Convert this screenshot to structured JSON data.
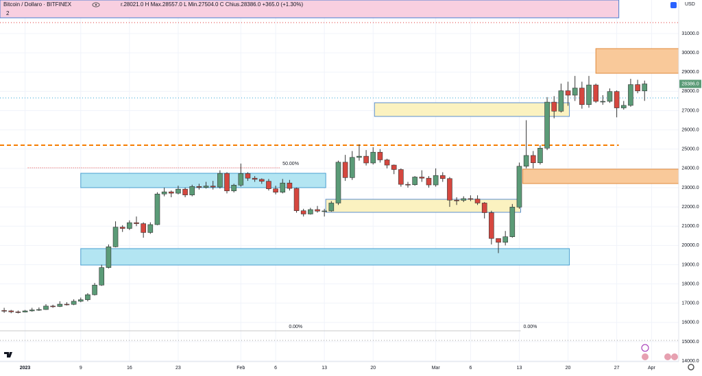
{
  "header": {
    "symbol": "Bitcoin / Dollaro · BITFINEX",
    "ohlc": "r.28021.0  H  Max.28557.0  L  Min.27504.0  C  Chius.28386.0  +365.0 (+1.30%)",
    "indicators": "2",
    "currency": "USD"
  },
  "chart_data": {
    "type": "candlestick",
    "up_color": "#5b9b77",
    "down_color": "#d5473f",
    "grid": true,
    "ylim": [
      13966,
      32742
    ],
    "xlim": [
      -0.6,
      96.9
    ],
    "yticks": [
      {
        "value": 14000,
        "label": "14000.0"
      },
      {
        "value": 15000,
        "label": "15000.0"
      },
      {
        "value": 16000,
        "label": "16000.0"
      },
      {
        "value": 17000,
        "label": "17000.0"
      },
      {
        "value": 18000,
        "label": "18000.0"
      },
      {
        "value": 19000,
        "label": "19000.0"
      },
      {
        "value": 20000,
        "label": "20000.0"
      },
      {
        "value": 21000,
        "label": "21000.0"
      },
      {
        "value": 22000,
        "label": "22000.0"
      },
      {
        "value": 23000,
        "label": "23000.0"
      },
      {
        "value": 24000,
        "label": "24000.0"
      },
      {
        "value": 25000,
        "label": "25000.0"
      },
      {
        "value": 26000,
        "label": "26000.0"
      },
      {
        "value": 27000,
        "label": "27000.0"
      },
      {
        "value": 28000,
        "label": "28000.0"
      },
      {
        "value": 29000,
        "label": "29000.0"
      },
      {
        "value": 30000,
        "label": "30000.0"
      },
      {
        "value": 31000,
        "label": "31000.0"
      }
    ],
    "xticks": [
      {
        "value": 3,
        "label": "2023"
      },
      {
        "value": 11,
        "label": "9"
      },
      {
        "value": 18,
        "label": "16"
      },
      {
        "value": 25,
        "label": "23"
      },
      {
        "value": 34,
        "label": "Feb"
      },
      {
        "value": 39,
        "label": "6"
      },
      {
        "value": 46,
        "label": "13"
      },
      {
        "value": 53,
        "label": "20"
      },
      {
        "value": 62,
        "label": "Mar"
      },
      {
        "value": 67,
        "label": "6"
      },
      {
        "value": 74,
        "label": "13"
      },
      {
        "value": 81,
        "label": "20"
      },
      {
        "value": 88,
        "label": "27"
      },
      {
        "value": 93,
        "label": "Apr"
      }
    ],
    "open": [
      16620,
      16600,
      16550,
      16540,
      16600,
      16650,
      16670,
      16850,
      16830,
      16950,
      16940,
      17100,
      17180,
      17440,
      17940,
      18850,
      19930,
      20950,
      20880,
      21180,
      21130,
      20670,
      21080,
      22670,
      22780,
      22710,
      22920,
      22620,
      23060,
      23010,
      23080,
      23030,
      23740,
      22830,
      23130,
      23730,
      23490,
      23430,
      23330,
      22940,
      22760,
      23240,
      22960,
      21800,
      21630,
      21860,
      21780,
      21790,
      22200,
      24320,
      23520,
      24570,
      24630,
      24280,
      24840,
      24440,
      24170,
      23940,
      23170,
      23150,
      23550,
      23490,
      23140,
      23630,
      23470,
      22350,
      22340,
      22430,
      22410,
      22200,
      21700,
      20360,
      20160,
      20450,
      21990,
      24110,
      24670,
      24290,
      25050,
      27440,
      26970,
      28030,
      27800,
      28170,
      27310,
      28330,
      27480,
      27480,
      27990,
      27140,
      27270,
      28350,
      28021
    ],
    "high": [
      16760,
      16650,
      16620,
      16650,
      16760,
      16780,
      16950,
      16920,
      17100,
      17050,
      17200,
      17290,
      17520,
      18050,
      19000,
      20050,
      21250,
      21050,
      21300,
      21500,
      21200,
      21200,
      22760,
      23000,
      22850,
      23100,
      23000,
      23150,
      23200,
      23300,
      23350,
      23900,
      23800,
      23200,
      24250,
      23800,
      23600,
      23480,
      23450,
      23100,
      23450,
      23400,
      23000,
      21900,
      21950,
      22050,
      21900,
      22300,
      24400,
      24700,
      24900,
      25250,
      24950,
      25100,
      25000,
      24500,
      24200,
      24000,
      23300,
      23600,
      23900,
      23600,
      24000,
      23800,
      23550,
      22500,
      22550,
      22600,
      22600,
      22250,
      21800,
      20300,
      20750,
      22150,
      24300,
      26500,
      24900,
      25200,
      27700,
      27750,
      28400,
      28500,
      28800,
      28500,
      28800,
      28400,
      27800,
      28150,
      28050,
      27500,
      28650,
      28600,
      28557
    ],
    "low": [
      16500,
      16480,
      16470,
      16520,
      16560,
      16600,
      16650,
      16760,
      16800,
      16880,
      16900,
      17050,
      17100,
      17400,
      17900,
      18800,
      19900,
      20700,
      20800,
      21000,
      20400,
      20600,
      21050,
      22550,
      22500,
      22650,
      22500,
      22550,
      22900,
      22950,
      22900,
      22950,
      22700,
      22750,
      23050,
      23350,
      23300,
      23200,
      22850,
      22650,
      22700,
      22850,
      21700,
      21500,
      21600,
      21700,
      21500,
      21750,
      22100,
      23350,
      23400,
      24400,
      24150,
      24200,
      24300,
      24000,
      23700,
      23050,
      23000,
      23100,
      23300,
      23000,
      23050,
      23300,
      22000,
      22100,
      22250,
      22300,
      22100,
      21400,
      20050,
      19600,
      20000,
      20400,
      21900,
      24000,
      24000,
      24200,
      24950,
      26600,
      26900,
      27250,
      27500,
      27100,
      27150,
      27400,
      27300,
      27400,
      26650,
      27050,
      27200,
      27900,
      27504
    ],
    "close": [
      16600,
      16550,
      16540,
      16600,
      16650,
      16670,
      16850,
      16830,
      16950,
      16940,
      17100,
      17180,
      17440,
      17940,
      18850,
      19930,
      20950,
      20880,
      21180,
      21130,
      20670,
      21080,
      22670,
      22780,
      22710,
      22920,
      22620,
      23060,
      23010,
      23080,
      23030,
      23740,
      22830,
      23130,
      23730,
      23490,
      23430,
      23330,
      22940,
      22760,
      23240,
      22960,
      21800,
      21630,
      21860,
      21780,
      21790,
      22200,
      24320,
      23520,
      24570,
      24630,
      24280,
      24840,
      24440,
      24170,
      23940,
      23170,
      23150,
      23550,
      23490,
      23140,
      23630,
      23470,
      22350,
      22340,
      22430,
      22410,
      22200,
      21700,
      20360,
      20160,
      20450,
      21990,
      24110,
      24670,
      24290,
      25050,
      27440,
      26970,
      28030,
      27800,
      28170,
      27310,
      28330,
      27480,
      27480,
      27990,
      27140,
      27270,
      28350,
      28021,
      28386
    ],
    "zones": [
      {
        "x0": -0.6,
        "x1": 88.3,
        "low": 31818,
        "high": 32742,
        "fill": "#f8cfe0",
        "stroke": "#4a7bd0"
      },
      {
        "x0": 11,
        "x1": 46.2,
        "low": 22999,
        "high": 23745,
        "fill": "#b3e5f2",
        "stroke": "#4a9fd0"
      },
      {
        "x0": 11,
        "x1": 81.2,
        "low": 18980,
        "high": 19834,
        "fill": "#b3e5f2",
        "stroke": "#4a9fd0"
      },
      {
        "x0": 46.2,
        "x1": 74.2,
        "low": 21718,
        "high": 22394,
        "fill": "#fbf2c0",
        "stroke": "#5a8fd0"
      },
      {
        "x0": 53.2,
        "x1": 81.2,
        "low": 26697,
        "high": 27408,
        "fill": "#fbf2c0",
        "stroke": "#5a8fd0"
      },
      {
        "x0": 85,
        "x1": 96.9,
        "low": 28937,
        "high": 30218,
        "fill": "#f9c99a",
        "stroke": "#e08a3c"
      },
      {
        "x0": 74.5,
        "x1": 96.9,
        "low": 23212,
        "high": 23959,
        "fill": "#f9c99a",
        "stroke": "#e08a3c"
      }
    ],
    "levels": [
      {
        "price": 31569,
        "color": "#e03030",
        "dash": "1 3",
        "x0": -0.6,
        "x1": 96.9
      },
      {
        "price": 27657,
        "color": "#2aa3d4",
        "dash": "1 3",
        "x0": -0.6,
        "x1": 96.9
      },
      {
        "price": 25203,
        "color": "#f57c00",
        "dash": "6 4",
        "x0": -0.6,
        "x1": 88.3
      },
      {
        "price": 24030,
        "color": "#e53935",
        "dash": "1 2",
        "x0": 3.4,
        "x1": 39.6,
        "label": "50.00%"
      },
      {
        "price": 15566,
        "color": "#c8c8c8",
        "dash": "none",
        "x0": -0.6,
        "x1": 40.5,
        "label": "0.00%"
      },
      {
        "price": 15566,
        "color": "#c8c8c8",
        "dash": "none",
        "x0": 40.5,
        "x1": 74.2,
        "label": "0.00%"
      },
      {
        "price": 15068,
        "color": "#9e9e9e",
        "dash": "1 3",
        "x0": -0.6,
        "x1": 96.9
      }
    ],
    "last_price": {
      "value": 28386,
      "label": "28386.0"
    }
  }
}
